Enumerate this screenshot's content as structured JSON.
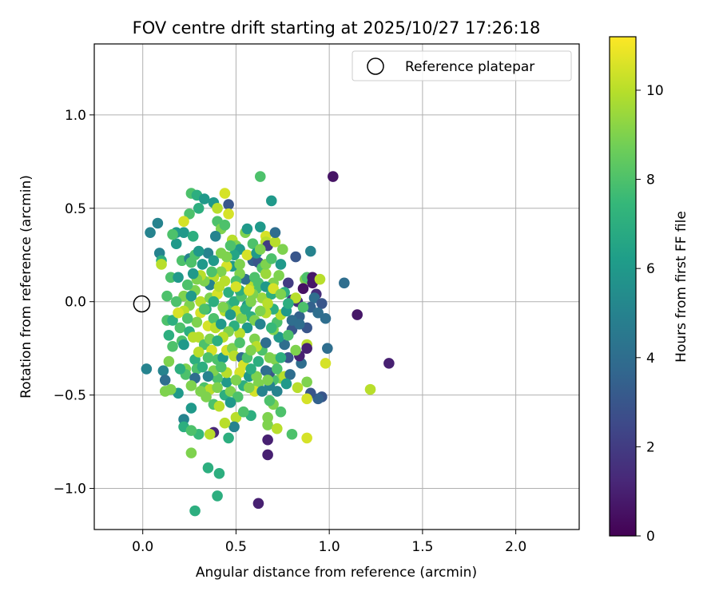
{
  "chart_data": {
    "type": "scatter",
    "title": "FOV centre drift starting at 2025/10/27 17:26:18",
    "xlabel": "Angular distance from reference (arcmin)",
    "ylabel": "Rotation from reference (arcmin)",
    "xlim": [
      -0.26,
      2.34
    ],
    "ylim": [
      -1.22,
      1.38
    ],
    "xticks": [
      0.0,
      0.5,
      1.0,
      1.5,
      2.0
    ],
    "xtick_labels": [
      "0.0",
      "0.5",
      "1.0",
      "1.5",
      "2.0"
    ],
    "yticks": [
      -1.0,
      -0.5,
      0.0,
      0.5,
      1.0
    ],
    "ytick_labels": [
      "−1.0",
      "−0.5",
      "0.0",
      "0.5",
      "1.0"
    ],
    "grid": true,
    "legend": {
      "label": "Reference platepar",
      "position": "top-right"
    },
    "reference_point": {
      "x": 0.0,
      "y": 0.0,
      "marker": "open-circle"
    },
    "colorbar": {
      "label": "Hours from first FF file",
      "min": 0,
      "max": 11.2,
      "ticks": [
        0,
        2,
        4,
        6,
        8,
        10
      ],
      "tick_labels": [
        "0",
        "2",
        "4",
        "6",
        "8",
        "10"
      ],
      "colormap": "viridis"
    },
    "points": [
      [
        1.02,
        0.67,
        0.6
      ],
      [
        0.63,
        0.67,
        8.0
      ],
      [
        1.15,
        -0.07,
        0.7
      ],
      [
        1.32,
        -0.33,
        1.0
      ],
      [
        1.22,
        -0.47,
        10.0
      ],
      [
        1.08,
        0.1,
        4.0
      ],
      [
        0.62,
        -1.08,
        1.0
      ],
      [
        0.67,
        -0.82,
        1.0
      ],
      [
        0.67,
        -0.74,
        1.0
      ],
      [
        0.38,
        -0.7,
        1.2
      ],
      [
        0.02,
        -0.36,
        5.0
      ],
      [
        0.04,
        0.37,
        5.0
      ],
      [
        0.08,
        0.42,
        5.0
      ],
      [
        0.09,
        0.26,
        5.0
      ],
      [
        0.1,
        0.22,
        7.0
      ],
      [
        0.1,
        0.2,
        10.0
      ],
      [
        0.18,
        0.31,
        6.0
      ],
      [
        0.18,
        0.37,
        6.0
      ],
      [
        0.22,
        0.37,
        6.0
      ],
      [
        0.25,
        0.47,
        8.0
      ],
      [
        0.26,
        0.58,
        8.0
      ],
      [
        0.29,
        0.57,
        7.0
      ],
      [
        0.33,
        0.55,
        6.0
      ],
      [
        0.3,
        0.5,
        7.0
      ],
      [
        0.27,
        0.35,
        7.0
      ],
      [
        0.38,
        0.53,
        6.0
      ],
      [
        0.4,
        0.5,
        10.0
      ],
      [
        0.44,
        0.58,
        10.5
      ],
      [
        0.46,
        0.52,
        3.0
      ],
      [
        0.46,
        0.47,
        10.5
      ],
      [
        0.4,
        0.43,
        8.0
      ],
      [
        0.42,
        0.39,
        9.0
      ],
      [
        0.44,
        0.41,
        8.0
      ],
      [
        0.39,
        0.35,
        5.0
      ],
      [
        0.48,
        0.33,
        10.0
      ],
      [
        0.5,
        0.3,
        9.0
      ],
      [
        0.52,
        0.28,
        6.0
      ],
      [
        0.49,
        0.25,
        6.5
      ],
      [
        0.55,
        0.37,
        9.0
      ],
      [
        0.56,
        0.39,
        6.0
      ],
      [
        0.59,
        0.31,
        8.0
      ],
      [
        0.63,
        0.4,
        6.0
      ],
      [
        0.66,
        0.35,
        10.5
      ],
      [
        0.66,
        0.32,
        10.0
      ],
      [
        0.67,
        0.3,
        2.0
      ],
      [
        0.69,
        0.54,
        6.0
      ],
      [
        0.71,
        0.32,
        10.0
      ],
      [
        0.71,
        0.37,
        4.0
      ],
      [
        0.59,
        0.22,
        3.5
      ],
      [
        0.62,
        0.21,
        3.0
      ],
      [
        0.64,
        0.18,
        8.0
      ],
      [
        0.66,
        0.15,
        9.5
      ],
      [
        0.7,
        0.1,
        9.0
      ],
      [
        0.74,
        0.2,
        6.0
      ],
      [
        0.73,
        0.14,
        9.0
      ],
      [
        0.78,
        0.1,
        2.0
      ],
      [
        0.82,
        0.24,
        3.0
      ],
      [
        0.87,
        0.12,
        9.0
      ],
      [
        0.88,
        0.13,
        8.0
      ],
      [
        0.9,
        0.27,
        5.0
      ],
      [
        0.91,
        0.1,
        0.7
      ],
      [
        0.91,
        0.13,
        0.7
      ],
      [
        0.95,
        0.12,
        10.0
      ],
      [
        0.93,
        0.04,
        1.5
      ],
      [
        0.92,
        0.02,
        4.0
      ],
      [
        0.96,
        -0.01,
        3.0
      ],
      [
        0.9,
        -0.03,
        3.5
      ],
      [
        0.94,
        -0.06,
        4.0
      ],
      [
        0.98,
        -0.09,
        4.0
      ],
      [
        0.86,
        0.07,
        0.5
      ],
      [
        0.83,
        0.0,
        1.5
      ],
      [
        0.84,
        -0.08,
        3.5
      ],
      [
        0.8,
        -0.15,
        3.0
      ],
      [
        0.88,
        -0.14,
        3.0
      ],
      [
        0.88,
        -0.23,
        10.0
      ],
      [
        0.88,
        -0.25,
        1.0
      ],
      [
        0.99,
        -0.25,
        4.0
      ],
      [
        0.98,
        -0.33,
        10.5
      ],
      [
        0.96,
        -0.51,
        3.0
      ],
      [
        0.94,
        -0.52,
        3.5
      ],
      [
        0.9,
        -0.49,
        3.0
      ],
      [
        0.88,
        -0.52,
        10.5
      ],
      [
        0.88,
        -0.43,
        9.0
      ],
      [
        0.83,
        -0.46,
        10.0
      ],
      [
        0.85,
        -0.33,
        4.0
      ],
      [
        0.84,
        -0.29,
        1.0
      ],
      [
        0.78,
        -0.3,
        3.0
      ],
      [
        0.74,
        -0.41,
        9.0
      ],
      [
        0.7,
        -0.42,
        8.0
      ],
      [
        0.68,
        -0.38,
        3.0
      ],
      [
        0.66,
        -0.37,
        4.0
      ],
      [
        0.68,
        -0.45,
        5.0
      ],
      [
        0.72,
        -0.48,
        5.0
      ],
      [
        0.7,
        -0.55,
        9.0
      ],
      [
        0.74,
        -0.59,
        8.0
      ],
      [
        0.67,
        -0.62,
        9.0
      ],
      [
        0.67,
        -0.66,
        9.0
      ],
      [
        0.72,
        -0.68,
        10.0
      ],
      [
        0.8,
        -0.71,
        8.0
      ],
      [
        0.88,
        -0.73,
        10.5
      ],
      [
        0.58,
        -0.61,
        7.0
      ],
      [
        0.5,
        -0.62,
        10.0
      ],
      [
        0.49,
        -0.67,
        5.0
      ],
      [
        0.46,
        -0.73,
        7.0
      ],
      [
        0.44,
        -0.65,
        10.0
      ],
      [
        0.36,
        -0.71,
        10.0
      ],
      [
        0.3,
        -0.71,
        7.5
      ],
      [
        0.26,
        -0.81,
        9.0
      ],
      [
        0.35,
        -0.89,
        7.0
      ],
      [
        0.41,
        -0.92,
        7.0
      ],
      [
        0.4,
        -1.04,
        7.0
      ],
      [
        0.28,
        -1.12,
        7.0
      ],
      [
        0.22,
        -0.63,
        5.0
      ],
      [
        0.22,
        -0.67,
        7.0
      ],
      [
        0.26,
        -0.69,
        8.0
      ],
      [
        0.26,
        -0.57,
        6.0
      ],
      [
        0.19,
        -0.49,
        6.0
      ],
      [
        0.15,
        -0.47,
        9.0
      ],
      [
        0.12,
        -0.48,
        9.0
      ],
      [
        0.11,
        -0.37,
        5.0
      ],
      [
        0.12,
        -0.42,
        4.0
      ],
      [
        0.14,
        -0.32,
        9.0
      ],
      [
        0.16,
        -0.24,
        8.0
      ],
      [
        0.14,
        -0.18,
        7.0
      ],
      [
        0.13,
        -0.1,
        8.0
      ],
      [
        0.16,
        -0.1,
        7.0
      ],
      [
        0.13,
        0.03,
        8.0
      ],
      [
        0.15,
        0.13,
        8.0
      ],
      [
        0.19,
        0.13,
        6.0
      ],
      [
        0.21,
        0.22,
        8.0
      ],
      [
        0.25,
        0.23,
        5.0
      ],
      [
        0.26,
        0.21,
        8.0
      ],
      [
        0.28,
        0.06,
        9.0
      ],
      [
        0.25,
        -0.02,
        9.0
      ],
      [
        0.22,
        -0.05,
        10.0
      ],
      [
        0.2,
        -0.14,
        8.0
      ],
      [
        0.21,
        -0.21,
        8.0
      ],
      [
        0.22,
        -0.23,
        6.0
      ],
      [
        0.25,
        -0.16,
        7.0
      ],
      [
        0.27,
        -0.19,
        10.0
      ],
      [
        0.3,
        -0.19,
        10.0
      ],
      [
        0.28,
        -0.31,
        7.0
      ],
      [
        0.29,
        -0.36,
        8.0
      ],
      [
        0.23,
        -0.36,
        9.0
      ],
      [
        0.23,
        -0.39,
        8.0
      ],
      [
        0.28,
        -0.41,
        4.0
      ],
      [
        0.26,
        -0.45,
        9.0
      ],
      [
        0.33,
        -0.46,
        8.0
      ],
      [
        0.36,
        -0.47,
        10.0
      ],
      [
        0.34,
        -0.51,
        9.0
      ],
      [
        0.38,
        -0.55,
        8.0
      ],
      [
        0.41,
        -0.56,
        10.0
      ],
      [
        0.44,
        -0.5,
        7.0
      ],
      [
        0.47,
        -0.48,
        9.0
      ],
      [
        0.45,
        -0.43,
        6.0
      ],
      [
        0.4,
        -0.41,
        8.0
      ],
      [
        0.38,
        -0.37,
        9.0
      ],
      [
        0.4,
        -0.31,
        8.0
      ],
      [
        0.43,
        -0.3,
        6.0
      ],
      [
        0.45,
        -0.26,
        10.5
      ],
      [
        0.48,
        -0.25,
        9.0
      ],
      [
        0.49,
        -0.29,
        10.0
      ],
      [
        0.53,
        -0.3,
        4.0
      ],
      [
        0.54,
        -0.34,
        10.5
      ],
      [
        0.52,
        -0.38,
        10.5
      ],
      [
        0.57,
        -0.4,
        6.0
      ],
      [
        0.61,
        -0.4,
        9.0
      ],
      [
        0.62,
        -0.44,
        9.0
      ],
      [
        0.6,
        -0.48,
        10.5
      ],
      [
        0.54,
        -0.45,
        7.0
      ],
      [
        0.51,
        -0.51,
        8.0
      ],
      [
        0.47,
        -0.54,
        6.0
      ],
      [
        0.33,
        -0.23,
        8.0
      ],
      [
        0.36,
        -0.2,
        9.0
      ],
      [
        0.35,
        -0.13,
        10.5
      ],
      [
        0.38,
        -0.09,
        8.0
      ],
      [
        0.39,
        -0.14,
        10.0
      ],
      [
        0.42,
        -0.12,
        6.0
      ],
      [
        0.44,
        -0.05,
        10.0
      ],
      [
        0.47,
        -0.02,
        8.0
      ],
      [
        0.49,
        0.0,
        7.0
      ],
      [
        0.53,
        0.03,
        8.0
      ],
      [
        0.56,
        -0.02,
        6.0
      ],
      [
        0.58,
        -0.08,
        7.0
      ],
      [
        0.6,
        -0.1,
        9.0
      ],
      [
        0.63,
        -0.12,
        5.0
      ],
      [
        0.6,
        -0.2,
        9.0
      ],
      [
        0.64,
        -0.26,
        8.0
      ],
      [
        0.61,
        -0.24,
        10.0
      ],
      [
        0.66,
        -0.22,
        4.0
      ],
      [
        0.68,
        -0.3,
        9.0
      ],
      [
        0.71,
        -0.31,
        9.0
      ],
      [
        0.74,
        -0.3,
        7.0
      ],
      [
        0.72,
        -0.36,
        8.0
      ],
      [
        0.76,
        -0.4,
        10.0
      ],
      [
        0.79,
        -0.39,
        4.0
      ],
      [
        0.76,
        -0.23,
        4.0
      ],
      [
        0.73,
        -0.19,
        6.0
      ],
      [
        0.7,
        -0.15,
        9.0
      ],
      [
        0.72,
        -0.11,
        8.0
      ],
      [
        0.74,
        -0.07,
        10.0
      ],
      [
        0.77,
        -0.05,
        6.0
      ],
      [
        0.8,
        0.01,
        2.0
      ],
      [
        0.82,
        0.02,
        10.0
      ],
      [
        0.76,
        0.05,
        7.0
      ],
      [
        0.7,
        -0.04,
        7.0
      ],
      [
        0.66,
        -0.06,
        10.0
      ],
      [
        0.64,
        0.02,
        9.5
      ],
      [
        0.61,
        0.07,
        8.0
      ],
      [
        0.58,
        0.1,
        10.0
      ],
      [
        0.55,
        0.12,
        4.0
      ],
      [
        0.52,
        0.15,
        9.0
      ],
      [
        0.48,
        0.19,
        6.0
      ],
      [
        0.45,
        0.19,
        10.5
      ],
      [
        0.42,
        0.16,
        9.0
      ],
      [
        0.38,
        0.13,
        10.0
      ],
      [
        0.36,
        0.09,
        5.0
      ],
      [
        0.33,
        0.11,
        9.0
      ],
      [
        0.31,
        0.14,
        10.0
      ],
      [
        0.29,
        0.12,
        9.0
      ],
      [
        0.27,
        0.15,
        6.0
      ],
      [
        0.24,
        0.09,
        8.0
      ],
      [
        0.22,
        0.03,
        9.0
      ],
      [
        0.19,
        -0.06,
        10.5
      ],
      [
        0.18,
        0.0,
        8.0
      ],
      [
        0.31,
        0.0,
        10.0
      ],
      [
        0.34,
        -0.04,
        7.0
      ],
      [
        0.31,
        -0.06,
        10.5
      ],
      [
        0.29,
        -0.11,
        9.0
      ],
      [
        0.36,
        0.02,
        9.0
      ],
      [
        0.4,
        0.04,
        10.5
      ],
      [
        0.43,
        -0.03,
        9.0
      ],
      [
        0.46,
        0.05,
        7.0
      ],
      [
        0.5,
        -0.05,
        10.0
      ],
      [
        0.53,
        -0.09,
        9.0
      ],
      [
        0.56,
        -0.14,
        6.0
      ],
      [
        0.52,
        -0.17,
        10.0
      ],
      [
        0.49,
        -0.13,
        7.0
      ],
      [
        0.46,
        -0.16,
        9.0
      ],
      [
        0.43,
        -0.19,
        10.0
      ],
      [
        0.4,
        -0.21,
        7.0
      ],
      [
        0.37,
        -0.26,
        10.5
      ],
      [
        0.35,
        -0.3,
        8.0
      ],
      [
        0.32,
        -0.35,
        7.0
      ],
      [
        0.3,
        -0.27,
        10.0
      ],
      [
        0.55,
        -0.04,
        7.0
      ],
      [
        0.59,
        0.04,
        9.0
      ],
      [
        0.62,
        0.1,
        8.0
      ],
      [
        0.66,
        0.08,
        6.0
      ],
      [
        0.69,
        0.04,
        7.0
      ],
      [
        0.67,
        -0.01,
        10.0
      ],
      [
        0.63,
        -0.05,
        9.0
      ],
      [
        0.8,
        -0.1,
        4.0
      ],
      [
        0.78,
        -0.18,
        8.0
      ],
      [
        0.84,
        -0.12,
        4.0
      ],
      [
        0.82,
        -0.26,
        9.0
      ],
      [
        0.58,
        0.0,
        9.0
      ],
      [
        0.45,
        -0.38,
        10.0
      ],
      [
        0.5,
        -0.42,
        9.0
      ],
      [
        0.56,
        -0.3,
        8.0
      ],
      [
        0.58,
        -0.36,
        7.0
      ],
      [
        0.52,
        0.06,
        7.0
      ],
      [
        0.5,
        0.11,
        8.0
      ],
      [
        0.41,
        0.08,
        10.0
      ],
      [
        0.38,
        0.0,
        7.0
      ],
      [
        0.28,
        0.25,
        8.0
      ],
      [
        0.32,
        0.2,
        6.0
      ],
      [
        0.35,
        0.26,
        5.0
      ],
      [
        0.42,
        0.26,
        9.0
      ],
      [
        0.47,
        0.3,
        8.0
      ],
      [
        0.45,
        0.24,
        9.0
      ],
      [
        0.56,
        0.25,
        10.5
      ],
      [
        0.61,
        0.26,
        6.0
      ],
      [
        0.66,
        0.2,
        9.0
      ],
      [
        0.63,
        0.28,
        9.0
      ],
      [
        0.69,
        0.23,
        8.0
      ],
      [
        0.75,
        0.28,
        9.0
      ],
      [
        0.38,
        0.22,
        6.0
      ],
      [
        0.16,
        0.36,
        8.0
      ],
      [
        0.22,
        0.43,
        10.5
      ],
      [
        0.3,
        0.27,
        6.0
      ],
      [
        0.52,
        0.2,
        9.0
      ],
      [
        0.37,
        0.16,
        8.0
      ],
      [
        0.44,
        0.11,
        10.0
      ],
      [
        0.26,
        0.03,
        6.0
      ],
      [
        0.24,
        -0.09,
        8.0
      ],
      [
        0.52,
        -0.22,
        8.0
      ],
      [
        0.69,
        -0.14,
        7.5
      ],
      [
        0.31,
        -0.48,
        9.0
      ],
      [
        0.4,
        -0.46,
        9.0
      ],
      [
        0.54,
        -0.59,
        8.0
      ],
      [
        0.2,
        -0.36,
        7.0
      ],
      [
        0.33,
        -0.04,
        8.0
      ],
      [
        0.47,
        -0.07,
        6.0
      ],
      [
        0.68,
        -0.53,
        8.0
      ],
      [
        0.77,
        -0.44,
        6.0
      ],
      [
        0.64,
        -0.48,
        5.0
      ],
      [
        0.57,
        -0.46,
        9.0
      ],
      [
        0.35,
        -0.4,
        5.0
      ],
      [
        0.42,
        -0.35,
        8.0
      ],
      [
        0.5,
        0.08,
        10.5
      ],
      [
        0.6,
        0.13,
        8.0
      ],
      [
        0.57,
        0.06,
        10.5
      ],
      [
        0.7,
        0.07,
        10.5
      ],
      [
        0.74,
        0.04,
        9.0
      ],
      [
        0.78,
        -0.01,
        7.0
      ],
      [
        0.86,
        -0.03,
        8.0
      ],
      [
        0.62,
        -0.32,
        7.0
      ],
      [
        0.58,
        -0.26,
        9.0
      ],
      [
        0.67,
        -0.42,
        9.0
      ]
    ]
  },
  "viridis": [
    "#440154",
    "#482878",
    "#3e4989",
    "#31688e",
    "#26828e",
    "#1f9e89",
    "#35b779",
    "#6ece58",
    "#b5de2b",
    "#fde725"
  ]
}
